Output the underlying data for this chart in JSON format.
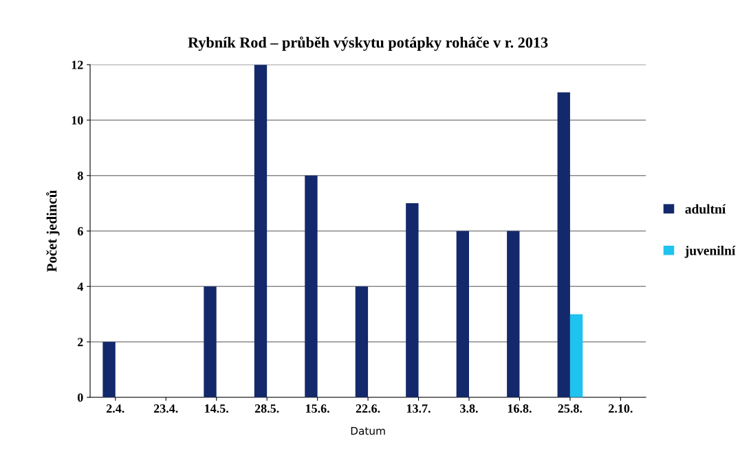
{
  "chart_data": {
    "type": "bar",
    "title": "Rybník Rod – průběh výskytu potápky roháče v r. 2013",
    "xlabel": "Datum",
    "ylabel": "Počet jedinců",
    "categories": [
      "2.4.",
      "23.4.",
      "14.5.",
      "28.5.",
      "15.6.",
      "22.6.",
      "13.7.",
      "3.8.",
      "16.8.",
      "25.8.",
      "2.10."
    ],
    "series": [
      {
        "name": "adultní",
        "color": "#14296b",
        "values": [
          2,
          0,
          4,
          12,
          8,
          4,
          7,
          6,
          6,
          11,
          0
        ]
      },
      {
        "name": "juvenilní",
        "color": "#1ec3ef",
        "values": [
          0,
          0,
          0,
          0,
          0,
          0,
          0,
          0,
          0,
          3,
          0
        ]
      }
    ],
    "ylim": [
      0,
      12
    ],
    "yticks": [
      0,
      2,
      4,
      6,
      8,
      10,
      12
    ],
    "grid": "y",
    "legend": "right"
  }
}
